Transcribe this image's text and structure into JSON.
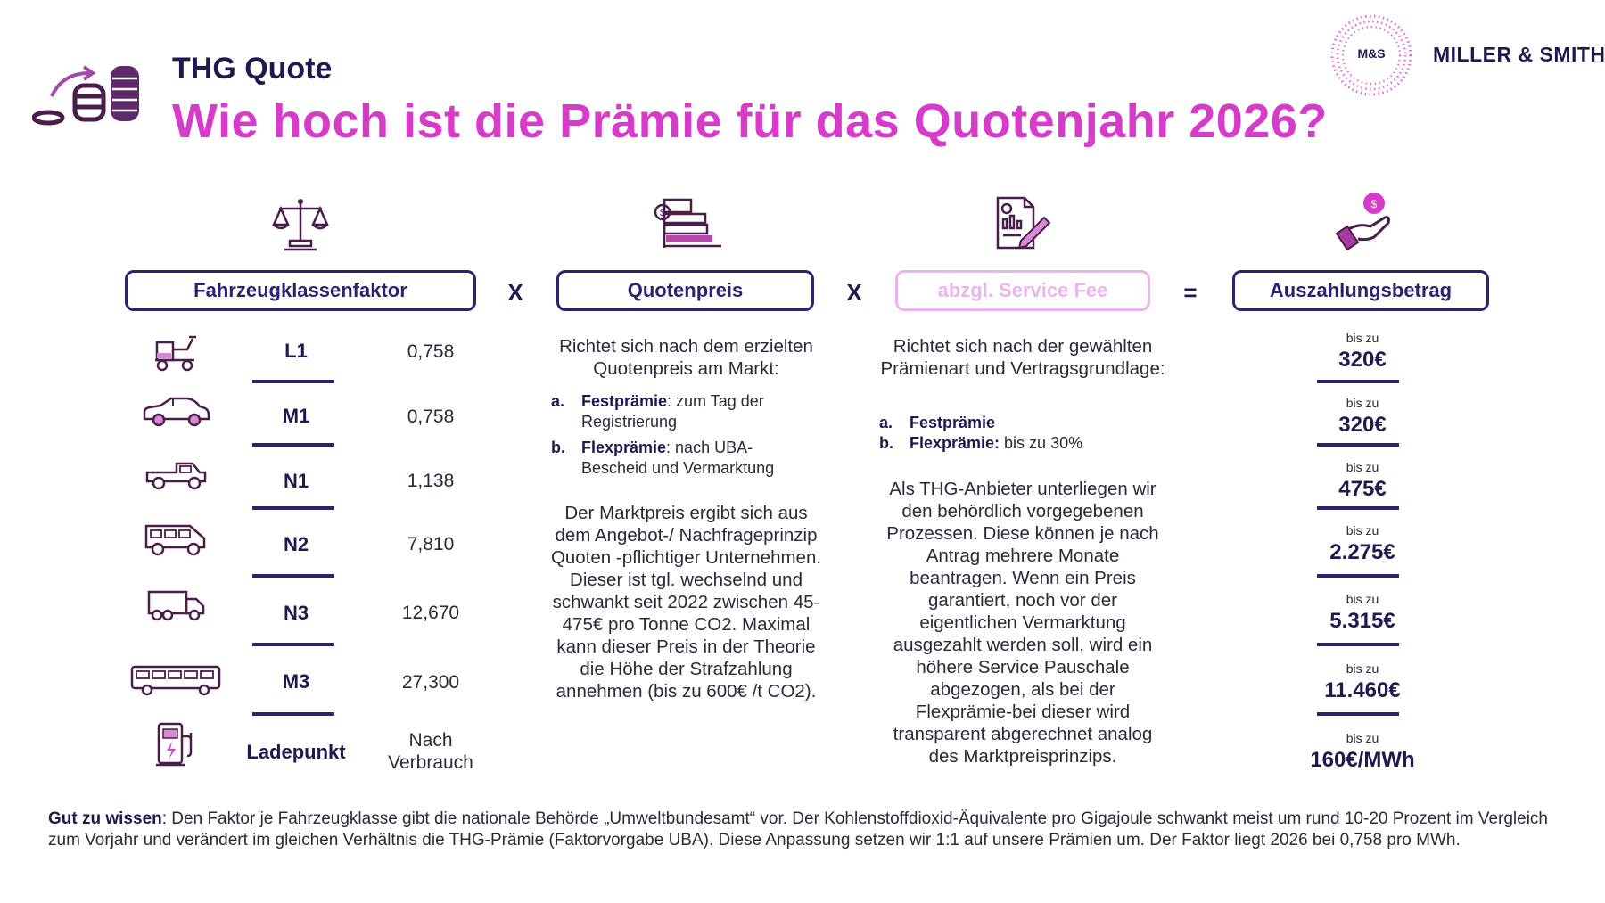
{
  "header": {
    "subtitle": "THG Quote",
    "title": "Wie hoch ist die Prämie für das Quotenjahr 2026?"
  },
  "brand": {
    "abbr": "M&S",
    "name": "MILLER & SMITH",
    "navy": "#1d1a4f",
    "magenta": "#d63bc9",
    "pink_light": "#ebb4ee"
  },
  "columns": {
    "factor": {
      "label": "Fahrzeugklassenfaktor",
      "icon": "scales-icon"
    },
    "op1": "X",
    "price": {
      "label": "Quotenpreis",
      "icon": "price-chart-icon"
    },
    "op2": "X",
    "fee": {
      "label": "abzgl. Service Fee",
      "icon": "document-pen-icon"
    },
    "op3": "=",
    "payout": {
      "label": "Auszahlungsbetrag",
      "icon": "hand-coin-icon"
    }
  },
  "rows": [
    {
      "cls": "L1",
      "factor": "0,758",
      "icon": "scooter-icon",
      "prefix": "bis zu",
      "payout": "320€"
    },
    {
      "cls": "M1",
      "factor": "0,758",
      "icon": "car-icon",
      "prefix": "bis zu",
      "payout": "320€"
    },
    {
      "cls": "N1",
      "factor": "1,138",
      "icon": "pickup-icon",
      "prefix": "bis zu",
      "payout": "475€"
    },
    {
      "cls": "N2",
      "factor": "7,810",
      "icon": "van-icon",
      "prefix": "bis zu",
      "payout": "2.275€"
    },
    {
      "cls": "N3",
      "factor": "12,670",
      "icon": "truck-icon",
      "prefix": "bis zu",
      "payout": "5.315€"
    },
    {
      "cls": "M3",
      "factor": "27,300",
      "icon": "bus-icon",
      "prefix": "bis zu",
      "payout": "11.460€"
    },
    {
      "cls": "Ladepunkt",
      "factor_l1": "Nach",
      "factor_l2": "Verbrauch",
      "icon": "charging-station-icon",
      "prefix": "bis zu",
      "payout": "160€/MWh"
    }
  ],
  "price_col": {
    "intro": "Richtet sich nach dem erzielten Quotenpreis am Markt:",
    "a_label": "a.",
    "a_bold": "Festprämie",
    "a_text": ": zum Tag der Registrierung",
    "b_label": "b.",
    "b_bold": "Flexprämie",
    "b_text": ": nach UBA-Bescheid und Vermarktung",
    "body": "Der Marktpreis ergibt sich aus dem Angebot-/ Nachfrageprinzip Quoten -pflichtiger Unternehmen. Dieser ist tgl. wechselnd und schwankt seit 2022 zwischen 45-475€ pro Tonne CO2. Maximal kann dieser Preis in der Theorie die Höhe der Strafzahlung annehmen (bis zu 600€ /t CO2)."
  },
  "fee_col": {
    "intro": "Richtet sich nach der gewählten Prämienart und Vertragsgrundlage:",
    "a_label": "a.",
    "a_bold": "Festprämie",
    "b_label": "b.",
    "b_bold": "Flexprämie:",
    "b_text": " bis zu 30%",
    "body": "Als THG-Anbieter unterliegen wir den behördlich vorgegebenen Prozessen. Diese können je nach Antrag mehrere Monate beantragen. Wenn ein Preis garantiert, noch vor der eigentlichen Vermarktung ausgezahlt werden soll, wird ein höhere Service Pauschale abgezogen, als bei der Flexprämie-bei dieser wird transparent abgerechnet analog des Marktpreisprinzips."
  },
  "footer": {
    "bold": "Gut zu wissen",
    "text": ": Den Faktor je Fahrzeugklasse gibt die nationale Behörde „Umweltbundesamt“ vor. Der Kohlenstoffdioxid-Äquivalente pro Gigajoule schwankt meist um rund 10-20 Prozent im Vergleich zum Vorjahr und verändert im gleichen Verhältnis die THG-Prämie (Faktorvorgabe UBA). Diese Anpassung setzen wir 1:1 auf unsere Prämien um. Der Faktor liegt 2026 bei 0,758 pro MWh."
  }
}
